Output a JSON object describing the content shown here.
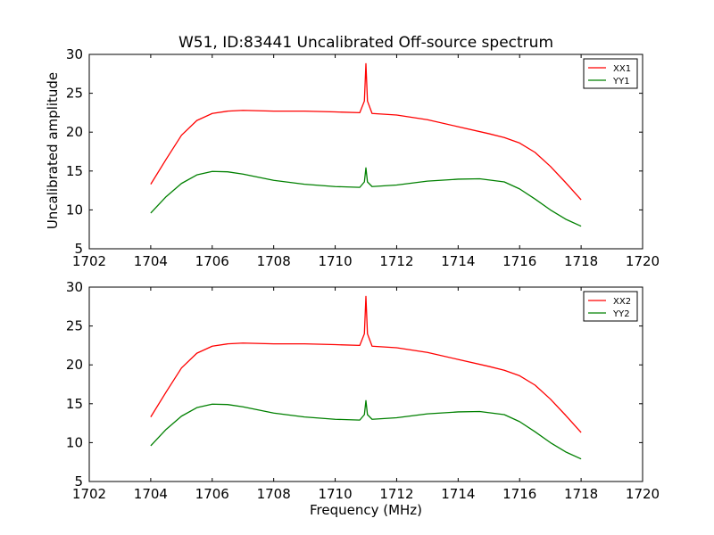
{
  "title": "W51, ID:83441 Uncalibrated Off-source spectrum",
  "xlabel": "Frequency (MHz)",
  "ylabel": "Uncalibrated amplitude",
  "colors": {
    "red": "#ff0000",
    "green": "#008000"
  },
  "chart_data": [
    {
      "type": "line",
      "xlim": [
        1702,
        1720
      ],
      "ylim": [
        5,
        30
      ],
      "x_ticks": [
        1702,
        1704,
        1706,
        1708,
        1710,
        1712,
        1714,
        1716,
        1718,
        1720
      ],
      "y_ticks": [
        5,
        10,
        15,
        20,
        25,
        30
      ],
      "legend": "top-right",
      "grid": false,
      "series": [
        {
          "name": "XX1",
          "color": "#ff0000",
          "x": [
            1704,
            1704.5,
            1705,
            1705.5,
            1706,
            1706.5,
            1707,
            1708,
            1709,
            1710,
            1710.8,
            1710.95,
            1711,
            1711.05,
            1711.2,
            1712,
            1713,
            1714,
            1715,
            1715.5,
            1716,
            1716.5,
            1717,
            1717.5,
            1718
          ],
          "values": [
            13.3,
            16.5,
            19.6,
            21.5,
            22.4,
            22.7,
            22.8,
            22.7,
            22.7,
            22.6,
            22.5,
            24.0,
            28.8,
            24.0,
            22.4,
            22.2,
            21.6,
            20.7,
            19.8,
            19.3,
            18.6,
            17.4,
            15.6,
            13.5,
            11.3
          ]
        },
        {
          "name": "YY1",
          "color": "#008000",
          "x": [
            1704,
            1704.5,
            1705,
            1705.5,
            1706,
            1706.5,
            1707,
            1708,
            1709,
            1710,
            1710.8,
            1710.95,
            1711,
            1711.05,
            1711.2,
            1712,
            1713,
            1714,
            1714.7,
            1715.5,
            1716,
            1716.5,
            1717,
            1717.5,
            1718
          ],
          "values": [
            9.6,
            11.7,
            13.4,
            14.5,
            14.95,
            14.9,
            14.6,
            13.8,
            13.3,
            13.0,
            12.9,
            13.6,
            15.4,
            13.6,
            13.0,
            13.2,
            13.7,
            13.95,
            14.0,
            13.6,
            12.7,
            11.4,
            10.0,
            8.8,
            7.9
          ]
        }
      ]
    },
    {
      "type": "line",
      "xlabel": "Frequency (MHz)",
      "xlim": [
        1702,
        1720
      ],
      "ylim": [
        5,
        30
      ],
      "x_ticks": [
        1702,
        1704,
        1706,
        1708,
        1710,
        1712,
        1714,
        1716,
        1718,
        1720
      ],
      "y_ticks": [
        5,
        10,
        15,
        20,
        25,
        30
      ],
      "legend": "top-right",
      "grid": false,
      "series": [
        {
          "name": "XX2",
          "color": "#ff0000",
          "x": [
            1704,
            1704.5,
            1705,
            1705.5,
            1706,
            1706.5,
            1707,
            1708,
            1709,
            1710,
            1710.8,
            1710.95,
            1711,
            1711.05,
            1711.2,
            1712,
            1713,
            1714,
            1715,
            1715.5,
            1716,
            1716.5,
            1717,
            1717.5,
            1718
          ],
          "values": [
            13.3,
            16.5,
            19.6,
            21.5,
            22.4,
            22.7,
            22.8,
            22.7,
            22.7,
            22.6,
            22.5,
            24.0,
            28.8,
            24.0,
            22.4,
            22.2,
            21.6,
            20.7,
            19.8,
            19.3,
            18.6,
            17.4,
            15.6,
            13.5,
            11.3
          ]
        },
        {
          "name": "YY2",
          "color": "#008000",
          "x": [
            1704,
            1704.5,
            1705,
            1705.5,
            1706,
            1706.5,
            1707,
            1708,
            1709,
            1710,
            1710.8,
            1710.95,
            1711,
            1711.05,
            1711.2,
            1712,
            1713,
            1714,
            1714.7,
            1715.5,
            1716,
            1716.5,
            1717,
            1717.5,
            1718
          ],
          "values": [
            9.6,
            11.7,
            13.4,
            14.5,
            14.95,
            14.9,
            14.6,
            13.8,
            13.3,
            13.0,
            12.9,
            13.6,
            15.4,
            13.6,
            13.0,
            13.2,
            13.7,
            13.95,
            14.0,
            13.6,
            12.7,
            11.4,
            10.0,
            8.8,
            7.9
          ]
        }
      ]
    }
  ]
}
